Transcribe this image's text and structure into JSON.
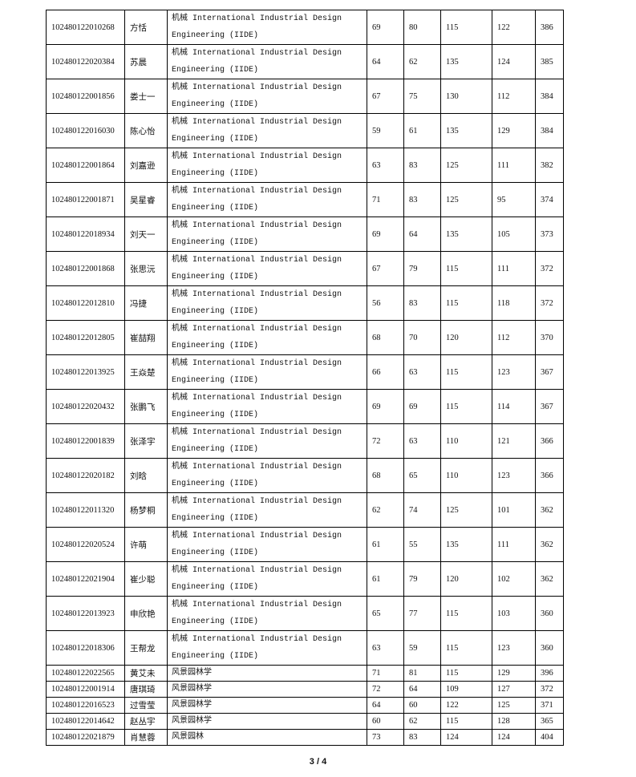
{
  "table": {
    "rows": [
      {
        "id": "102480122010268",
        "name": "方恬",
        "major": "机械 International Industrial Design Engineering (IIDE)",
        "s1": "69",
        "s2": "80",
        "s3": "115",
        "s4": "122",
        "total": "386"
      },
      {
        "id": "102480122020384",
        "name": "苏晨",
        "major": "机械 International Industrial Design Engineering (IIDE)",
        "s1": "64",
        "s2": "62",
        "s3": "135",
        "s4": "124",
        "total": "385"
      },
      {
        "id": "102480122001856",
        "name": "娄士一",
        "major": "机械 International Industrial Design Engineering (IIDE)",
        "s1": "67",
        "s2": "75",
        "s3": "130",
        "s4": "112",
        "total": "384"
      },
      {
        "id": "102480122016030",
        "name": "陈心怡",
        "major": "机械 International Industrial Design Engineering (IIDE)",
        "s1": "59",
        "s2": "61",
        "s3": "135",
        "s4": "129",
        "total": "384"
      },
      {
        "id": "102480122001864",
        "name": "刘嘉逊",
        "major": "机械 International Industrial Design Engineering (IIDE)",
        "s1": "63",
        "s2": "83",
        "s3": "125",
        "s4": "111",
        "total": "382"
      },
      {
        "id": "102480122001871",
        "name": "吴星睿",
        "major": "机械 International Industrial Design Engineering (IIDE)",
        "s1": "71",
        "s2": "83",
        "s3": "125",
        "s4": "95",
        "total": "374"
      },
      {
        "id": "102480122018934",
        "name": "刘天一",
        "major": "机械 International Industrial Design Engineering (IIDE)",
        "s1": "69",
        "s2": "64",
        "s3": "135",
        "s4": "105",
        "total": "373"
      },
      {
        "id": "102480122001868",
        "name": "张思沅",
        "major": "机械 International Industrial Design Engineering (IIDE)",
        "s1": "67",
        "s2": "79",
        "s3": "115",
        "s4": "111",
        "total": "372"
      },
      {
        "id": "102480122012810",
        "name": "冯捷",
        "major": "机械 International Industrial Design Engineering (IIDE)",
        "s1": "56",
        "s2": "83",
        "s3": "115",
        "s4": "118",
        "total": "372"
      },
      {
        "id": "102480122012805",
        "name": "崔喆翔",
        "major": "机械 International Industrial Design Engineering (IIDE)",
        "s1": "68",
        "s2": "70",
        "s3": "120",
        "s4": "112",
        "total": "370"
      },
      {
        "id": "102480122013925",
        "name": "王焱楚",
        "major": "机械 International Industrial Design Engineering (IIDE)",
        "s1": "66",
        "s2": "63",
        "s3": "115",
        "s4": "123",
        "total": "367"
      },
      {
        "id": "102480122020432",
        "name": "张鹏飞",
        "major": "机械 International Industrial Design Engineering (IIDE)",
        "s1": "69",
        "s2": "69",
        "s3": "115",
        "s4": "114",
        "total": "367"
      },
      {
        "id": "102480122001839",
        "name": "张泽宇",
        "major": "机械 International Industrial Design Engineering (IIDE)",
        "s1": "72",
        "s2": "63",
        "s3": "110",
        "s4": "121",
        "total": "366"
      },
      {
        "id": "102480122020182",
        "name": "刘晗",
        "major": "机械 International Industrial Design Engineering (IIDE)",
        "s1": "68",
        "s2": "65",
        "s3": "110",
        "s4": "123",
        "total": "366"
      },
      {
        "id": "102480122011320",
        "name": "杨梦桐",
        "major": "机械 International Industrial Design Engineering (IIDE)",
        "s1": "62",
        "s2": "74",
        "s3": "125",
        "s4": "101",
        "total": "362"
      },
      {
        "id": "102480122020524",
        "name": "许萌",
        "major": "机械 International Industrial Design Engineering (IIDE)",
        "s1": "61",
        "s2": "55",
        "s3": "135",
        "s4": "111",
        "total": "362"
      },
      {
        "id": "102480122021904",
        "name": "崔少聪",
        "major": "机械 International Industrial Design Engineering (IIDE)",
        "s1": "61",
        "s2": "79",
        "s3": "120",
        "s4": "102",
        "total": "362"
      },
      {
        "id": "102480122013923",
        "name": "申欣艳",
        "major": "机械 International Industrial Design Engineering (IIDE)",
        "s1": "65",
        "s2": "77",
        "s3": "115",
        "s4": "103",
        "total": "360"
      },
      {
        "id": "102480122018306",
        "name": "王帮龙",
        "major": "机械 International Industrial Design Engineering (IIDE)",
        "s1": "63",
        "s2": "59",
        "s3": "115",
        "s4": "123",
        "total": "360"
      },
      {
        "id": "102480122022565",
        "name": "黄艾未",
        "major": "风景园林学",
        "s1": "71",
        "s2": "81",
        "s3": "115",
        "s4": "129",
        "total": "396"
      },
      {
        "id": "102480122001914",
        "name": "唐琪琦",
        "major": "风景园林学",
        "s1": "72",
        "s2": "64",
        "s3": "109",
        "s4": "127",
        "total": "372"
      },
      {
        "id": "102480122016523",
        "name": "过雪莹",
        "major": "风景园林学",
        "s1": "64",
        "s2": "60",
        "s3": "122",
        "s4": "125",
        "total": "371"
      },
      {
        "id": "102480122014642",
        "name": "赵丛宇",
        "major": "风景园林学",
        "s1": "60",
        "s2": "62",
        "s3": "115",
        "s4": "128",
        "total": "365"
      },
      {
        "id": "102480122021879",
        "name": "肖慧蓉",
        "major": "风景园林",
        "s1": "73",
        "s2": "83",
        "s3": "124",
        "s4": "124",
        "total": "404"
      }
    ]
  },
  "footer": {
    "page": "3 / 4"
  }
}
